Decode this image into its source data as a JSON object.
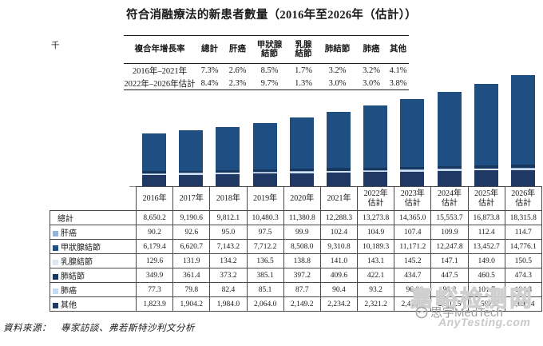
{
  "title": "符合消融療法的新患者數量（2016年至2026年（估計））",
  "unit_label": "千",
  "cagr_table": {
    "headers": [
      "複合年增長率",
      "總計",
      "肝癌",
      "甲狀腺\n結節",
      "乳腺\n結節",
      "肺結節",
      "肺癌",
      "其他"
    ],
    "rows": [
      {
        "label": "2016年–2021年",
        "values": [
          "7.3%",
          "2.6%",
          "8.5%",
          "1.7%",
          "3.2%",
          "3.2%",
          "4.1%"
        ]
      },
      {
        "label": "2022年–2026年估計",
        "values": [
          "8.4%",
          "2.3%",
          "9.7%",
          "1.3%",
          "3.0%",
          "3.0%",
          "3.8%"
        ]
      }
    ]
  },
  "chart_data": {
    "type": "bar",
    "stacked": true,
    "title": "符合消融療法的新患者數量（2016年至2026年（估計））",
    "ylabel": "千",
    "ylim": [
      0,
      18500
    ],
    "grid": false,
    "legend_position": "table-left-column",
    "categories": [
      "2016年",
      "2017年",
      "2018年",
      "2019年",
      "2020年",
      "2021年",
      "2022年估計",
      "2023年估計",
      "2024年估計",
      "2025年估計",
      "2026年估計"
    ],
    "series": [
      {
        "name": "肝癌",
        "color": "#95B3D7",
        "values": [
          90.2,
          92.6,
          95.0,
          97.5,
          99.9,
          102.4,
          104.9,
          107.4,
          109.9,
          112.4,
          114.7
        ]
      },
      {
        "name": "甲狀腺結節",
        "color": "#1F4E82",
        "values": [
          6179.4,
          6620.7,
          7143.2,
          7712.2,
          8508.0,
          9310.8,
          10189.3,
          11171.2,
          12247.8,
          13452.7,
          14776.1
        ]
      },
      {
        "name": "乳腺結節",
        "color": "#DCE6F1",
        "values": [
          129.6,
          131.9,
          134.2,
          136.5,
          138.8,
          141.0,
          143.1,
          145.2,
          147.1,
          149.0,
          150.5
        ]
      },
      {
        "name": "肺結節",
        "color": "#17375E",
        "values": [
          349.9,
          361.4,
          373.2,
          385.1,
          397.2,
          409.6,
          422.1,
          434.7,
          447.5,
          460.5,
          474.3
        ]
      },
      {
        "name": "肺癌",
        "color": "#C5D9F1",
        "values": [
          77.3,
          79.8,
          82.4,
          85.1,
          87.7,
          90.4,
          93.2,
          96.0,
          98.8,
          101.7,
          104.8
        ]
      },
      {
        "name": "其他",
        "color": "#1F3864",
        "values": [
          1823.9,
          1904.2,
          1984.0,
          2064.0,
          2149.2,
          2234.2,
          2321.2,
          2410.5,
          2502.5,
          2597.5,
          2695.4
        ]
      }
    ],
    "totals": [
      8650.2,
      9190.6,
      9812.1,
      10480.3,
      11380.8,
      12288.3,
      13273.8,
      14365.0,
      15553.7,
      16873.8,
      18315.8
    ]
  },
  "data_table": {
    "year_headers": [
      "2016年",
      "2017年",
      "2018年",
      "2019年",
      "2020年",
      "2021年",
      "2022年\n估計",
      "2023年\n估計",
      "2024年\n估計",
      "2025年\n估計",
      "2026年\n估計"
    ],
    "rows": [
      {
        "label": "總計",
        "swatch": null,
        "values": [
          "8,650.2",
          "9,190.6",
          "9,812.1",
          "10,480.3",
          "11,380.8",
          "12,288.3",
          "13,273.8",
          "14,365.0",
          "15,553.7",
          "16,873.8",
          "18,315.8"
        ]
      },
      {
        "label": "肝癌",
        "swatch": "#95B3D7",
        "values": [
          "90.2",
          "92.6",
          "95.0",
          "97.5",
          "99.9",
          "102.4",
          "104.9",
          "107.4",
          "109.9",
          "112.4",
          "114.7"
        ]
      },
      {
        "label": "甲狀腺結節",
        "swatch": "#1F4E82",
        "values": [
          "6,179.4",
          "6,620.7",
          "7,143.2",
          "7,712.2",
          "8,508.0",
          "9,310.8",
          "10,189.3",
          "11,171.2",
          "12,247.8",
          "13,452.7",
          "14,776.1"
        ]
      },
      {
        "label": "乳腺結節",
        "swatch": "#DCE6F1",
        "values": [
          "129.6",
          "131.9",
          "134.2",
          "136.5",
          "138.8",
          "141.0",
          "143.1",
          "145.2",
          "147.1",
          "149.0",
          "150.5"
        ]
      },
      {
        "label": "肺結節",
        "swatch": "#17375E",
        "values": [
          "349.9",
          "361.4",
          "373.2",
          "385.1",
          "397.2",
          "409.6",
          "422.1",
          "434.7",
          "447.5",
          "460.5",
          "474.3"
        ]
      },
      {
        "label": "肺癌",
        "swatch": "#C5D9F1",
        "values": [
          "77.3",
          "79.8",
          "82.4",
          "85.1",
          "87.7",
          "90.4",
          "93.2",
          "96.0",
          "98.8",
          "101.7",
          "104.8"
        ]
      },
      {
        "label": "其他",
        "swatch": "#1F3864",
        "values": [
          "1,823.9",
          "1,904.2",
          "1,984.0",
          "2,064.0",
          "2,149.2",
          "2,234.2",
          "2,321.2",
          "2,410.5",
          "2,502.5",
          "2,597.5",
          "2,695.4"
        ]
      }
    ]
  },
  "source_note": "資料來源：　專家訪談、弗若斯特沙利文分析",
  "watermark": {
    "outline_text": "嘉峪检测网",
    "brand": "思宇MedTech",
    "site": "AnyTesting.com"
  },
  "layout_colors": {
    "bar_main": "#1F4E82",
    "border": "#4a4a4a"
  }
}
